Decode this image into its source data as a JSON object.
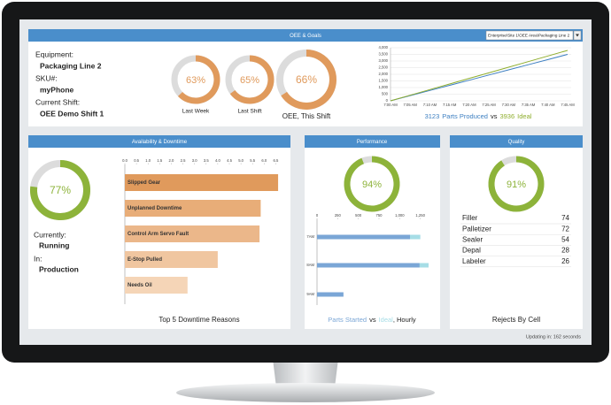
{
  "header": {
    "title": "OEE & Goals",
    "selector": "Enterprise\\Site 1\\OEE Area\\Packaging Line 2"
  },
  "info": [
    {
      "label": "Equipment:",
      "value": "Packaging Line 2"
    },
    {
      "label": "SKU#:",
      "value": "myPhone"
    },
    {
      "label": "Current Shift:",
      "value": "OEE Demo Shift 1"
    }
  ],
  "panels": [
    "Availability & Downtime",
    "Performance",
    "Quality"
  ],
  "status": [
    {
      "label": "Currently:",
      "value": "Running"
    },
    {
      "label": "In:",
      "value": "Production"
    }
  ],
  "chart_data": [
    {
      "type": "gauge",
      "categories": [
        "Last Week",
        "Last Shift",
        "OEE, This Shift"
      ],
      "values": [
        63,
        65,
        66
      ],
      "value_labels": [
        "63%",
        "65%",
        "66%"
      ],
      "color": "#e09a5c",
      "track": "#dcdcdc"
    },
    {
      "type": "line",
      "categories": [
        "7:00 AM",
        "7:05 AM",
        "7:10 AM",
        "7:15 AM",
        "7:20 AM",
        "7:25 AM",
        "7:30 AM",
        "7:35 AM",
        "7:40 AM",
        "7:45 AM"
      ],
      "series": [
        {
          "name": "Parts Produced",
          "color": "#3d7fc1",
          "total": 3123,
          "values": [
            0,
            390,
            780,
            1165,
            1555,
            1945,
            2335,
            2720,
            3110,
            3500
          ]
        },
        {
          "name": "Ideal",
          "color": "#8fae2e",
          "total": 3936,
          "values": [
            0,
            420,
            845,
            1265,
            1690,
            2110,
            2535,
            2955,
            3380,
            3800
          ]
        }
      ],
      "connector": "vs",
      "ylim": [
        0,
        4000
      ],
      "yticks": [
        0,
        500,
        {
          "value": 1000,
          "label": "1,000"
        },
        {
          "value": 1500,
          "label": "1,500"
        },
        {
          "value": 2000,
          "label": "2,000"
        },
        {
          "value": 2500,
          "label": "2,500"
        },
        {
          "value": 3000,
          "label": "3,000"
        },
        {
          "value": 3500,
          "label": "3,500"
        },
        {
          "value": 4000,
          "label": "4,000"
        }
      ],
      "grid": true
    },
    {
      "type": "gauge",
      "values": [
        77
      ],
      "value_labels": [
        "77%"
      ],
      "color": "#8db33a",
      "track": "#dcdcdc"
    },
    {
      "type": "hbar",
      "title": "Top 5 Downtime Reasons",
      "categories": [
        "Slipped Gear",
        "Unplanned Downtime",
        "Control Arm Servo Fault",
        "E-Stop Pulled",
        "Needs Oil"
      ],
      "values": [
        6.6,
        5.85,
        5.8,
        4.0,
        2.7
      ],
      "colors": [
        "#e09a5c",
        "#e8ad78",
        "#ebb78a",
        "#f0c6a0",
        "#f5d5b7"
      ],
      "xlim": [
        0,
        6.75
      ],
      "xticks": [
        {
          "value": 0,
          "label": "0.0"
        },
        {
          "value": 0.5,
          "label": "0.5"
        },
        {
          "value": 1,
          "label": "1.0"
        },
        {
          "value": 1.5,
          "label": "1.5"
        },
        {
          "value": 2,
          "label": "2.0"
        },
        {
          "value": 2.5,
          "label": "2.5"
        },
        {
          "value": 3,
          "label": "3.0"
        },
        {
          "value": 3.5,
          "label": "3.5"
        },
        {
          "value": 4,
          "label": "4.0"
        },
        {
          "value": 4.5,
          "label": "4.5"
        },
        {
          "value": 5,
          "label": "5.0"
        },
        {
          "value": 5.5,
          "label": "5.5"
        },
        {
          "value": 6,
          "label": "6.0"
        },
        {
          "value": 6.5,
          "label": "6.5"
        }
      ]
    },
    {
      "type": "gauge",
      "values": [
        94
      ],
      "value_labels": [
        "94%"
      ],
      "color": "#8db33a",
      "track": "#dcdcdc"
    },
    {
      "type": "hbar",
      "categories": [
        "7AM",
        "8AM",
        "9AM"
      ],
      "series": [
        {
          "name": "Parts Started",
          "color": "#7aa6d6",
          "values": [
            1125,
            1240,
            320
          ]
        },
        {
          "name": "Ideal",
          "color": "#a6dde6",
          "values": [
            1250,
            1350,
            300
          ]
        }
      ],
      "connector": "vs",
      "suffix": ", Hourly",
      "xlim": [
        0,
        1350
      ],
      "xticks": [
        0,
        250,
        500,
        750,
        {
          "value": 1000,
          "label": "1,000"
        },
        {
          "value": 1250,
          "label": "1,250"
        }
      ]
    },
    {
      "type": "gauge",
      "values": [
        91
      ],
      "value_labels": [
        "91%"
      ],
      "color": "#8db33a",
      "track": "#dcdcdc"
    }
  ],
  "quality": {
    "rows": [
      {
        "name": "Filler",
        "value": 74
      },
      {
        "name": "Palletizer",
        "value": 72
      },
      {
        "name": "Sealer",
        "value": 54
      },
      {
        "name": "Depal",
        "value": 28
      },
      {
        "name": "Labeler",
        "value": 26
      }
    ],
    "caption": "Rejects By Cell"
  },
  "footer": "Updating in: 162 seconds"
}
